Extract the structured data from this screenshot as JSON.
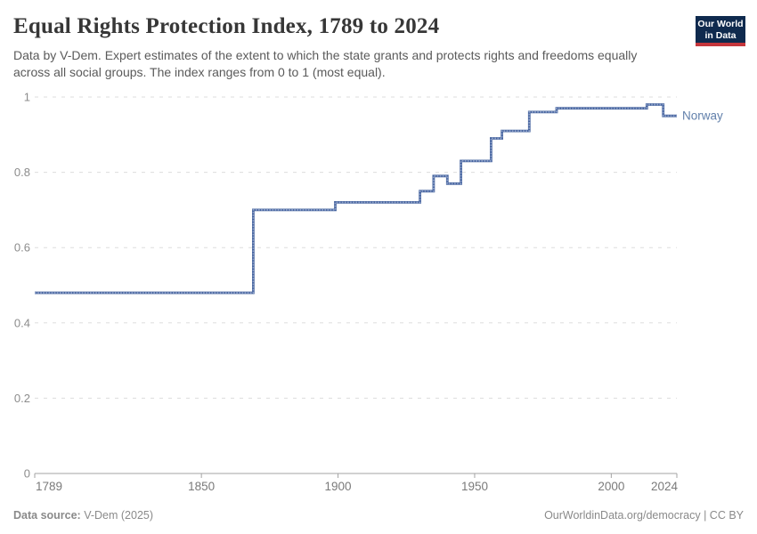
{
  "header": {
    "title": "Equal Rights Protection Index, 1789 to 2024",
    "subtitle": "Data by V-Dem. Expert estimates of the extent to which the state grants and protects rights and freedoms equally across all social groups. The index ranges from 0 to 1 (most equal).",
    "logo": {
      "line1": "Our World",
      "line2": "in Data",
      "navy": "#0f2a4e",
      "red": "#c5363c"
    }
  },
  "chart_data": {
    "type": "line",
    "title": "Equal Rights Protection Index, 1789 to 2024",
    "entity": "Norway",
    "xlabel": "",
    "ylabel": "",
    "xlim": [
      1789,
      2024
    ],
    "ylim": [
      0,
      1
    ],
    "x_ticks": [
      1789,
      1850,
      1900,
      1950,
      2000,
      2024
    ],
    "y_ticks": [
      0,
      0.2,
      0.4,
      0.6,
      0.8,
      1
    ],
    "grid": true,
    "legend_position": "end-of-line-label",
    "line_color": "#46649f",
    "marker_color": "#93a5cb",
    "label_color": "#6280ab",
    "grid_color": "#dddddd",
    "axis_color": "#a3a3a3",
    "x_tick_color": "#7a7a7a",
    "y_tick_color": "#8c8c8c",
    "segments": [
      {
        "from": 1789,
        "to": 1869,
        "value": 0.48
      },
      {
        "from": 1869,
        "to": 1899,
        "value": 0.7
      },
      {
        "from": 1899,
        "to": 1930,
        "value": 0.72
      },
      {
        "from": 1930,
        "to": 1935,
        "value": 0.75
      },
      {
        "from": 1935,
        "to": 1940,
        "value": 0.79
      },
      {
        "from": 1940,
        "to": 1945,
        "value": 0.77
      },
      {
        "from": 1945,
        "to": 1956,
        "value": 0.83
      },
      {
        "from": 1956,
        "to": 1960,
        "value": 0.89
      },
      {
        "from": 1960,
        "to": 1970,
        "value": 0.91
      },
      {
        "from": 1970,
        "to": 1980,
        "value": 0.96
      },
      {
        "from": 1980,
        "to": 2013,
        "value": 0.97
      },
      {
        "from": 2013,
        "to": 2019,
        "value": 0.98
      },
      {
        "from": 2019,
        "to": 2024,
        "value": 0.95
      }
    ]
  },
  "footer": {
    "source_label": "Data source:",
    "source_value": " V-Dem (2025)",
    "credit": "OurWorldinData.org/democracy | CC BY"
  }
}
